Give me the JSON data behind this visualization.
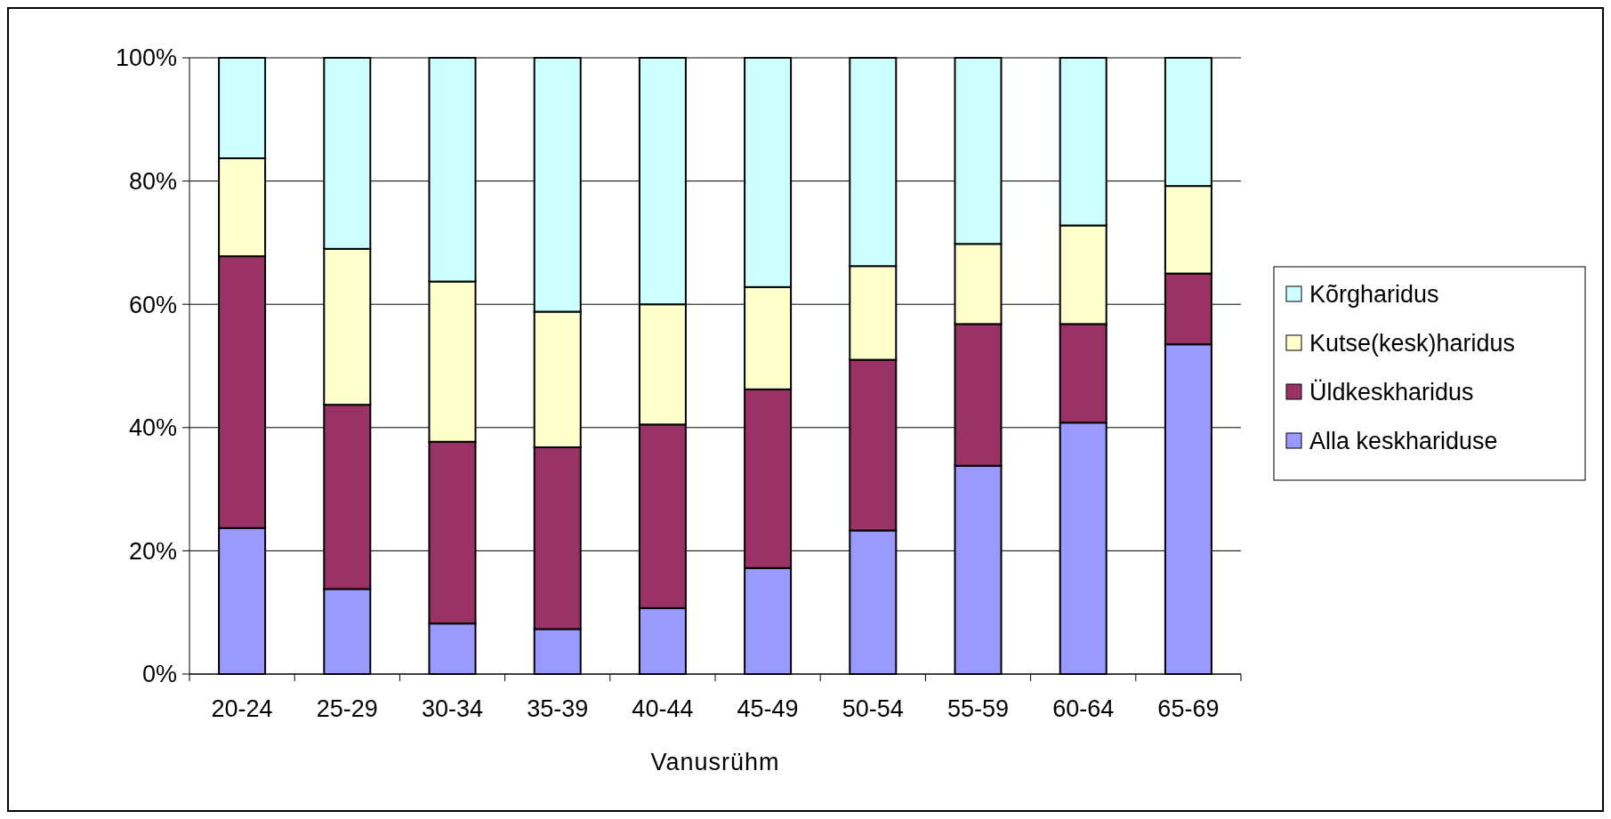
{
  "chart_data": {
    "type": "bar",
    "stacked": true,
    "xlabel": "Vanusrühm",
    "categories": [
      "20-24",
      "25-29",
      "30-34",
      "35-39",
      "40-44",
      "45-49",
      "50-54",
      "55-59",
      "60-64",
      "65-69"
    ],
    "series": [
      {
        "name": "Alla keskhariduse",
        "color": "#9999ff",
        "values": [
          23.7,
          13.8,
          8.2,
          7.3,
          10.7,
          17.2,
          23.3,
          33.8,
          40.8,
          53.5
        ]
      },
      {
        "name": "Üldkeskharidus",
        "color": "#993366",
        "values": [
          44.1,
          29.9,
          29.5,
          29.5,
          29.8,
          29.0,
          27.7,
          23.0,
          16.0,
          11.5
        ]
      },
      {
        "name": "Kutse(kesk)haridus",
        "color": "#ffffcc",
        "values": [
          15.9,
          25.3,
          26.0,
          22.0,
          19.5,
          16.6,
          15.2,
          13.0,
          16.0,
          14.2
        ]
      },
      {
        "name": "Kõrgharidus",
        "color": "#ccffff",
        "values": [
          16.3,
          31.0,
          36.3,
          41.2,
          40.0,
          37.2,
          33.8,
          30.2,
          27.2,
          20.8
        ]
      }
    ],
    "ylim": [
      0,
      100
    ],
    "yticks": [
      {
        "value": 0,
        "label": "0%"
      },
      {
        "value": 20,
        "label": "20%"
      },
      {
        "value": 40,
        "label": "40%"
      },
      {
        "value": 60,
        "label": "60%"
      },
      {
        "value": 80,
        "label": "80%"
      },
      {
        "value": 100,
        "label": "100%"
      }
    ],
    "grid": "y",
    "legend": "right"
  }
}
